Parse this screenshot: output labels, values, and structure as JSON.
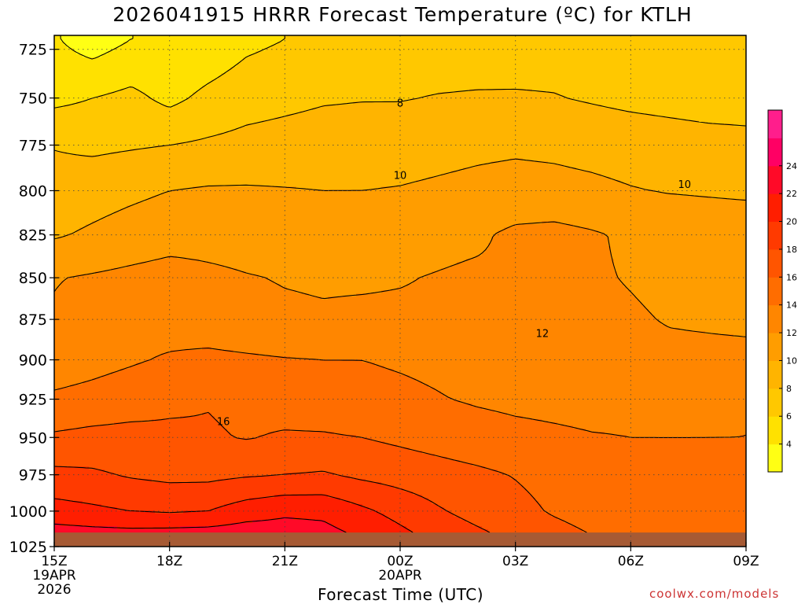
{
  "title": "2026041915 HRRR Forecast Temperature (ºC) for KTLH",
  "credit": "coolwx.com/models",
  "chart_data": {
    "type": "contour",
    "title": "2026041915 HRRR Forecast Temperature (ºC) for KTLH",
    "xlabel": "Forecast Time (UTC)",
    "ylabel": "",
    "x_ticks": [
      {
        "label": "15Z",
        "sub": [
          "19APR",
          "2026"
        ]
      },
      {
        "label": "18Z",
        "sub": []
      },
      {
        "label": "21Z",
        "sub": []
      },
      {
        "label": "00Z",
        "sub": [
          "20APR"
        ]
      },
      {
        "label": "03Z",
        "sub": []
      },
      {
        "label": "06Z",
        "sub": []
      },
      {
        "label": "09Z",
        "sub": []
      }
    ],
    "x_hours": [
      0,
      3,
      6,
      9,
      12,
      15,
      18
    ],
    "x_range_hours": [
      0,
      18
    ],
    "y_ticks": [
      725,
      750,
      775,
      800,
      825,
      850,
      875,
      900,
      925,
      950,
      975,
      1000,
      1025
    ],
    "y_range": [
      718,
      1025
    ],
    "y_scale": "log-pressure",
    "y_reversed": true,
    "grid": true,
    "contour_interval": 2,
    "contour_labels": [
      "8",
      "10",
      "10",
      "12",
      "16"
    ],
    "colorbar": {
      "levels": [
        2,
        4,
        6,
        8,
        10,
        12,
        14,
        16,
        18,
        20,
        22,
        24,
        26
      ],
      "tick_labels": [
        "4",
        "6",
        "8",
        "10",
        "12",
        "14",
        "16",
        "18",
        "20",
        "22",
        "24"
      ],
      "colors": [
        "#ffff14",
        "#ffe100",
        "#ffc800",
        "#ffb400",
        "#ff9d00",
        "#ff8600",
        "#ff6d00",
        "#ff5500",
        "#ff3a00",
        "#ff1e00",
        "#ff0a28",
        "#ff0064",
        "#ff1e8c"
      ]
    },
    "temperature_field": {
      "hours": [
        0,
        1,
        2,
        3,
        4,
        5,
        6,
        7,
        8,
        9,
        10,
        11,
        12,
        13,
        14,
        15,
        16,
        17,
        18
      ],
      "pressure_levels": [
        720,
        750,
        775,
        800,
        825,
        850,
        875,
        900,
        925,
        950,
        975,
        1000,
        1015
      ],
      "rows": [
        [
          4.2,
          3.0,
          4.0,
          4.0,
          4.5,
          5.5,
          6.0,
          6.5,
          7.0,
          7.0,
          6.8,
          6.8,
          6.9,
          7.0,
          7.0,
          7.2,
          7.4,
          7.5,
          7.6
        ],
        [
          5.5,
          6.0,
          6.5,
          5.5,
          6.5,
          7.2,
          7.5,
          7.8,
          7.9,
          7.9,
          8.1,
          8.2,
          8.2,
          8.1,
          7.8,
          7.5,
          7.3,
          7.1,
          7.0
        ],
        [
          7.9,
          7.6,
          7.8,
          8.0,
          8.3,
          8.6,
          8.8,
          9.0,
          9.1,
          9.2,
          9.4,
          9.6,
          9.7,
          9.6,
          9.4,
          9.2,
          9.0,
          8.8,
          8.7
        ],
        [
          8.8,
          9.2,
          9.6,
          10.0,
          10.2,
          10.2,
          10.1,
          10.0,
          10.0,
          10.1,
          10.3,
          10.5,
          10.7,
          10.6,
          10.4,
          10.1,
          9.9,
          9.8,
          9.7
        ],
        [
          9.8,
          10.3,
          10.8,
          11.2,
          11.3,
          11.2,
          11.1,
          11.1,
          11.2,
          11.3,
          11.5,
          11.7,
          12.4,
          12.6,
          12.2,
          11.7,
          11.4,
          11.2,
          11.1
        ],
        [
          11.9,
          12.2,
          12.5,
          12.8,
          12.4,
          12.1,
          11.9,
          11.8,
          11.8,
          11.9,
          12.1,
          12.3,
          12.2,
          12.4,
          12.2,
          11.9,
          11.6,
          11.5,
          11.4
        ],
        [
          12.2,
          12.8,
          13.4,
          13.2,
          12.8,
          12.5,
          12.3,
          12.2,
          12.3,
          12.3,
          12.3,
          12.3,
          12.1,
          12.3,
          12.4,
          12.2,
          11.9,
          11.8,
          11.7
        ],
        [
          13.0,
          13.4,
          13.8,
          14.2,
          14.5,
          14.3,
          14.1,
          14.0,
          14.0,
          13.8,
          13.6,
          13.3,
          12.8,
          12.6,
          12.5,
          12.5,
          12.4,
          12.4,
          12.4
        ],
        [
          14.3,
          14.6,
          15.0,
          15.6,
          15.9,
          15.6,
          15.2,
          14.9,
          14.6,
          14.4,
          14.1,
          13.8,
          13.6,
          13.5,
          13.4,
          13.5,
          13.6,
          13.8,
          14.0
        ],
        [
          16.3,
          16.6,
          16.7,
          16.4,
          16.2,
          15.9,
          16.2,
          16.2,
          16.0,
          15.6,
          15.2,
          14.8,
          14.5,
          14.3,
          14.1,
          14.0,
          14.0,
          14.0,
          14.0
        ],
        [
          18.5,
          18.3,
          17.8,
          17.5,
          17.5,
          17.8,
          18.0,
          18.2,
          17.6,
          17.2,
          16.8,
          16.4,
          15.9,
          15.3,
          14.8,
          14.5,
          14.3,
          14.2,
          14.1
        ],
        [
          20.8,
          20.4,
          20.0,
          19.8,
          20.0,
          21.0,
          21.6,
          21.5,
          20.4,
          19.3,
          18.2,
          17.3,
          16.6,
          15.8,
          15.2,
          14.7,
          14.4,
          14.2,
          14.1
        ],
        [
          22.8,
          22.6,
          22.5,
          22.6,
          22.7,
          23.0,
          22.9,
          22.6,
          21.6,
          20.4,
          19.2,
          18.3,
          17.4,
          16.6,
          15.9,
          15.2,
          14.6,
          14.3,
          14.2
        ]
      ]
    },
    "ground_color": "#a65a34"
  }
}
